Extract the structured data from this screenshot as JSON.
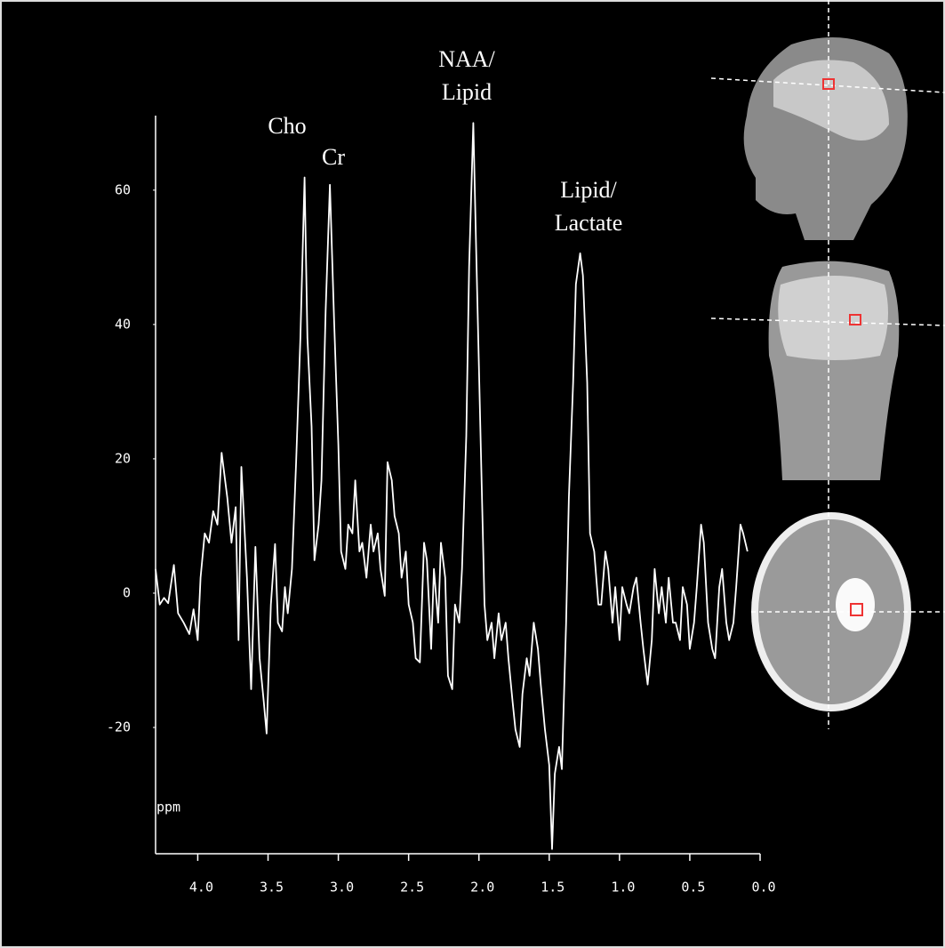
{
  "chart_data": {
    "type": "line",
    "x_label": "ppm",
    "annotations": [
      [
        "Cho"
      ],
      [
        "Cr"
      ],
      [
        "NAA/",
        "Lipid"
      ],
      [
        "Lipid/",
        "Lactate"
      ]
    ],
    "color": "#ffffff",
    "x": [
      4.3,
      4.27,
      4.24,
      4.21,
      4.17,
      4.14,
      4.1,
      4.06,
      4.03,
      4.0,
      3.98,
      3.95,
      3.92,
      3.89,
      3.86,
      3.83,
      3.79,
      3.76,
      3.73,
      3.71,
      3.69,
      3.65,
      3.62,
      3.59,
      3.56,
      3.53,
      3.51,
      3.48,
      3.45,
      3.43,
      3.4,
      3.38,
      3.36,
      3.33,
      3.3,
      3.27,
      3.24,
      3.22,
      3.19,
      3.17,
      3.14,
      3.12,
      3.09,
      3.06,
      3.03,
      3.0,
      2.98,
      2.95,
      2.93,
      2.9,
      2.88,
      2.85,
      2.83,
      2.8,
      2.77,
      2.75,
      2.72,
      2.7,
      2.67,
      2.65,
      2.62,
      2.6,
      2.57,
      2.55,
      2.52,
      2.5,
      2.47,
      2.45,
      2.42,
      2.39,
      2.37,
      2.34,
      2.32,
      2.29,
      2.27,
      2.24,
      2.22,
      2.19,
      2.17,
      2.14,
      2.12,
      2.09,
      2.07,
      2.04,
      2.02,
      1.99,
      1.96,
      1.94,
      1.91,
      1.89,
      1.86,
      1.84,
      1.81,
      1.79,
      1.76,
      1.74,
      1.71,
      1.69,
      1.66,
      1.64,
      1.61,
      1.58,
      1.56,
      1.53,
      1.5,
      1.48,
      1.46,
      1.43,
      1.41,
      1.38,
      1.36,
      1.33,
      1.31,
      1.28,
      1.26,
      1.23,
      1.21,
      1.18,
      1.15,
      1.13,
      1.1,
      1.08,
      1.05,
      1.03,
      1.0,
      0.98,
      0.95,
      0.93,
      0.9,
      0.88,
      0.85,
      0.83,
      0.8,
      0.77,
      0.75,
      0.72,
      0.7,
      0.67,
      0.65,
      0.62,
      0.6,
      0.57,
      0.55,
      0.52,
      0.5,
      0.47,
      0.45,
      0.42,
      0.4,
      0.37,
      0.34,
      0.32,
      0.29,
      0.27,
      0.24,
      0.22,
      0.19,
      0.17,
      0.14,
      0.12,
      0.09
    ],
    "values": [
      3.6,
      -1.7,
      -0.7,
      -1.5,
      4.2,
      -3.0,
      -4.4,
      -6.1,
      -2.4,
      -7.0,
      2.3,
      8.9,
      7.5,
      12.2,
      10.2,
      20.9,
      14.2,
      7.5,
      12.8,
      -7.0,
      18.8,
      2.3,
      -14.3,
      6.9,
      -9.7,
      -16.3,
      -20.9,
      -1.7,
      7.3,
      -4.4,
      -5.7,
      0.9,
      -3.0,
      3.6,
      19.5,
      38.0,
      61.9,
      38.0,
      24.8,
      4.9,
      10.2,
      16.8,
      42.0,
      60.8,
      40.7,
      22.1,
      6.2,
      3.6,
      10.2,
      8.9,
      16.8,
      6.2,
      7.5,
      2.3,
      10.2,
      6.2,
      8.9,
      3.6,
      -0.4,
      19.5,
      16.8,
      11.5,
      8.9,
      2.3,
      6.2,
      -1.7,
      -4.4,
      -9.7,
      -10.3,
      7.5,
      4.9,
      -8.3,
      3.6,
      -4.4,
      7.5,
      2.3,
      -12.3,
      -14.3,
      -1.7,
      -4.4,
      3.6,
      23.4,
      48.6,
      70.0,
      51.3,
      24.8,
      -1.7,
      -7.0,
      -4.4,
      -9.7,
      -3.0,
      -7.0,
      -4.4,
      -9.7,
      -16.3,
      -20.3,
      -22.9,
      -15.0,
      -9.7,
      -12.3,
      -4.4,
      -8.3,
      -13.6,
      -20.3,
      -25.6,
      -38.1,
      -26.9,
      -22.9,
      -26.2,
      -4.4,
      14.2,
      31.4,
      46.0,
      50.6,
      47.3,
      31.4,
      8.9,
      6.2,
      -1.7,
      -1.7,
      6.2,
      3.6,
      -4.4,
      0.9,
      -7.0,
      0.9,
      -1.7,
      -3.0,
      0.9,
      2.3,
      -4.4,
      -8.3,
      -13.6,
      -7.0,
      3.6,
      -3.0,
      0.9,
      -4.4,
      2.3,
      -4.4,
      -4.4,
      -7.0,
      0.9,
      -1.7,
      -8.3,
      -4.4,
      0.9,
      10.2,
      7.5,
      -4.4,
      -8.3,
      -9.7,
      0.9,
      3.6,
      -4.4,
      -7.0,
      -4.4,
      0.9,
      10.2,
      8.9,
      6.2
    ],
    "xlim": [
      4.3,
      0
    ],
    "ylim": [
      -38.8,
      71.1
    ],
    "xticks": [
      {
        "value": 4,
        "label": "4.0"
      },
      3.5,
      {
        "value": 3,
        "label": "3.0"
      },
      2.5,
      {
        "value": 2,
        "label": "2.0"
      },
      1.5,
      {
        "value": 1,
        "label": "1.0"
      },
      0.5,
      {
        "value": 0,
        "label": "0.0"
      }
    ],
    "yticks": [
      -20,
      0,
      20,
      40,
      60
    ]
  }
}
